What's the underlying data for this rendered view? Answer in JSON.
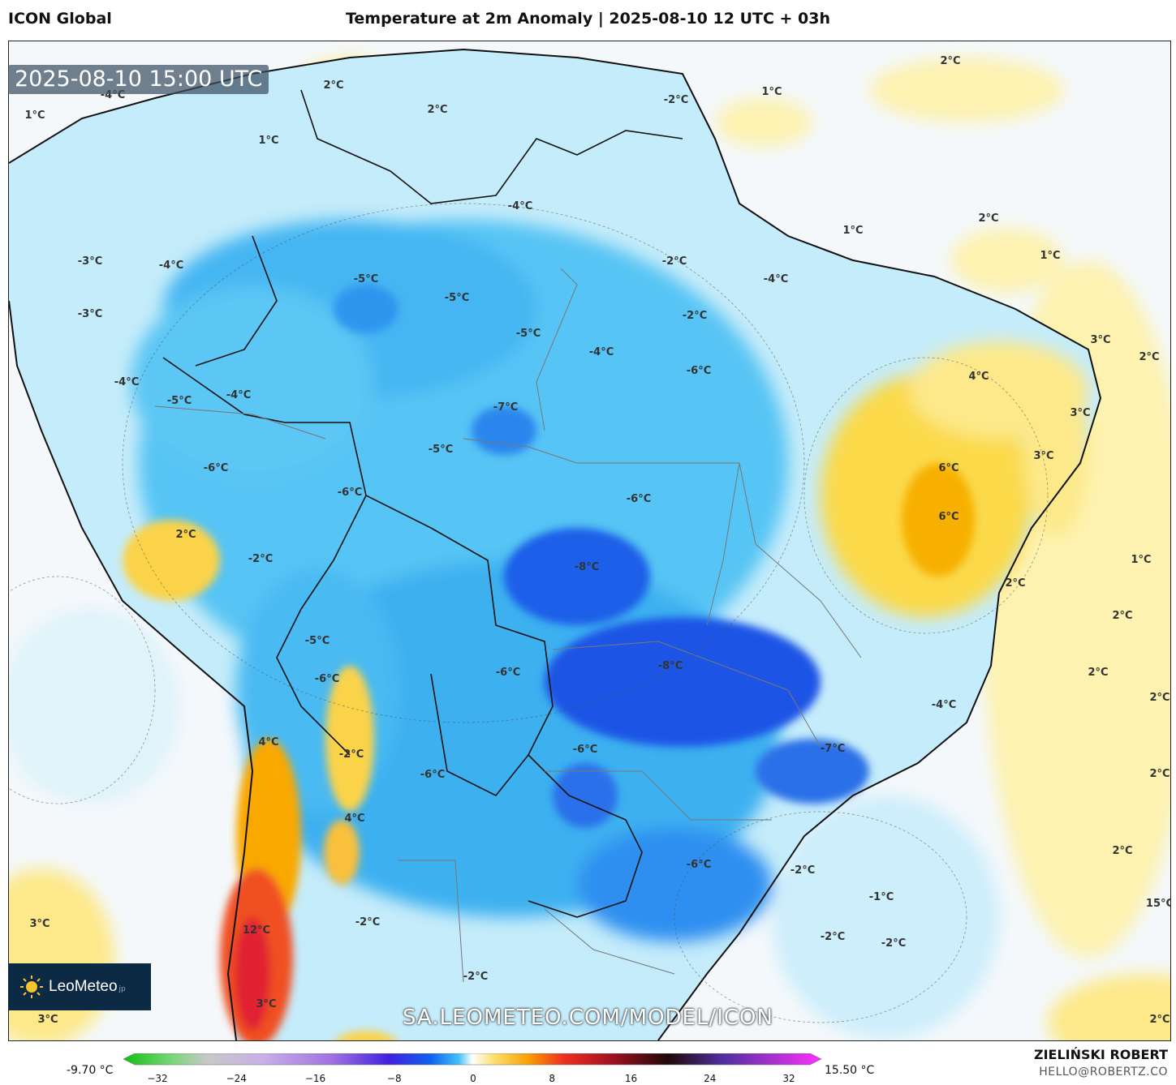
{
  "header": {
    "model": "ICON Global",
    "title": "Temperature at 2m Anomaly | 2025-08-10 12 UTC + 03h"
  },
  "timestamp": "2025-08-10 15:00 UTC",
  "logo": {
    "name": "LeoMeteo",
    "suffix": "jp",
    "icon": "sun-icon"
  },
  "watermark": "SA.LEOMETEO.COM/MODEL/ICON",
  "colorbar": {
    "min_label": "-9.70 °C",
    "max_label": "15.50 °C",
    "ticks": [
      "−32",
      "−24",
      "−16",
      "−8",
      "0",
      "8",
      "16",
      "24",
      "32"
    ]
  },
  "credit": {
    "author": "ZIELIŃSKI ROBERT",
    "email": "HELLO@ROBERTZ.CO"
  },
  "map_labels": [
    "2°C",
    "1°C",
    "2°C",
    "2°C",
    "1°C",
    "1°C",
    "-2°C",
    "-4°C",
    "2°C",
    "1°C",
    "-4°C",
    "-3°C",
    "-4°C",
    "-5°C",
    "-5°C",
    "-2°C",
    "-4°C",
    "1°C",
    "-3°C",
    "-5°C",
    "-4°C",
    "-2°C",
    "3°C",
    "2°C",
    "-4°C",
    "-5°C",
    "-4°C",
    "-6°C",
    "4°C",
    "-7°C",
    "3°C",
    "-5°C",
    "-6°C",
    "-6°C",
    "3°C",
    "6°C",
    "-6°C",
    "6°C",
    "2°C",
    "-2°C",
    "-8°C",
    "1°C",
    "2°C",
    "-5°C",
    "2°C",
    "-6°C",
    "-8°C",
    "-6°C",
    "2°C",
    "-4°C",
    "4°C",
    "-6°C",
    "-7°C",
    "-2°C",
    "2°C",
    "-6°C",
    "4°C",
    "-6°C",
    "2°C",
    "-2°C",
    "-1°C",
    "2°C",
    "3°C",
    "12°C",
    "-2°C",
    "-2°C",
    "-2°C",
    "-2°C",
    "15°C",
    "3°C",
    "3°C",
    "2°C"
  ],
  "colors": {
    "cold_deep": "#1a3fe0",
    "cold": "#2ea8f2",
    "cool": "#b8e8fb",
    "neutral": "#f4f8fb",
    "warm": "#fdeea0",
    "hot": "#f7b500",
    "very_hot": "#e8321e"
  }
}
